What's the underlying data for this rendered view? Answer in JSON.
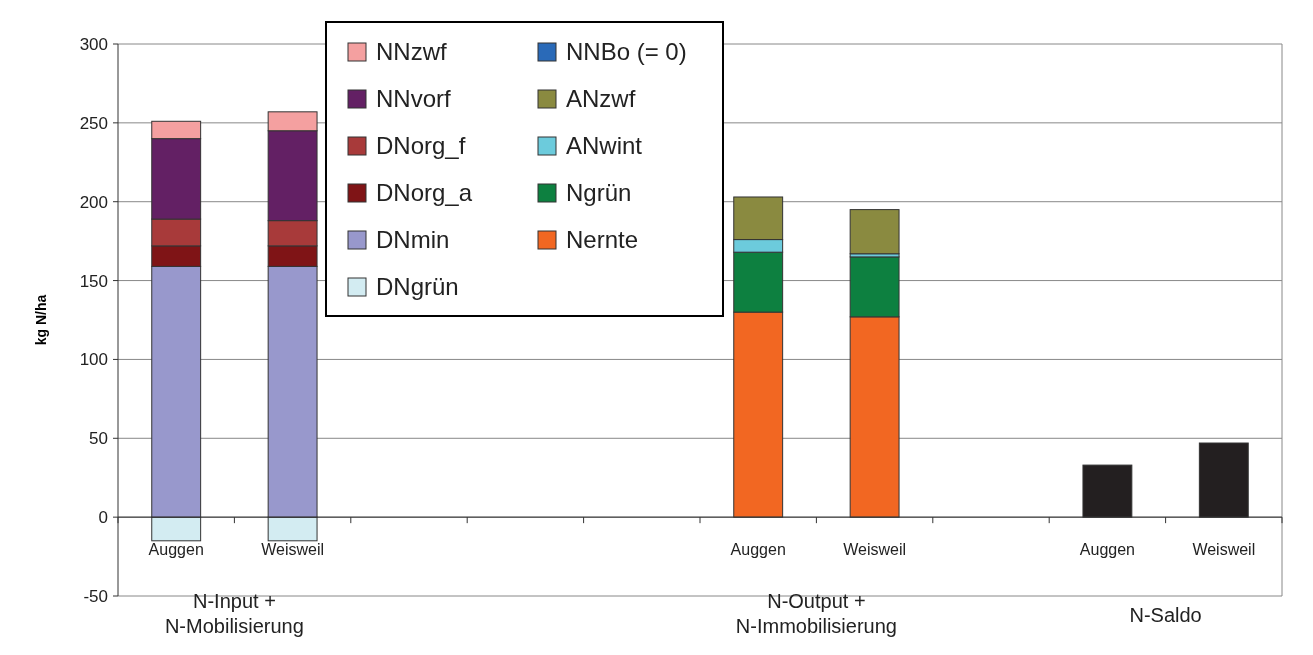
{
  "chart_data": {
    "type": "bar",
    "stacked": true,
    "ylabel": "kg N/ha",
    "categories": [
      "Auggen",
      "Weisweil",
      null,
      null,
      null,
      "Auggen",
      "Weisweil",
      null,
      "Auggen",
      "Weisweil"
    ],
    "series": [
      {
        "name": "DNgrün",
        "color": "#d3ecf2",
        "values": [
          -15,
          -15,
          null,
          null,
          null,
          null,
          null,
          null,
          null,
          null
        ]
      },
      {
        "name": "DNmin",
        "color": "#9898cc",
        "values": [
          159,
          159,
          null,
          null,
          null,
          null,
          null,
          null,
          null,
          null
        ]
      },
      {
        "name": "DNorg_a",
        "color": "#7f1416",
        "values": [
          13,
          13,
          null,
          null,
          null,
          null,
          null,
          null,
          null,
          null
        ]
      },
      {
        "name": "DNorg_f",
        "color": "#a83a3a",
        "values": [
          17,
          16,
          null,
          null,
          null,
          null,
          null,
          null,
          null,
          null
        ]
      },
      {
        "name": "NNvorf",
        "color": "#632064",
        "values": [
          51,
          57,
          null,
          null,
          null,
          null,
          null,
          null,
          null,
          null
        ]
      },
      {
        "name": "NNzwf",
        "color": "#f4a0a0",
        "values": [
          11,
          12,
          null,
          null,
          null,
          null,
          null,
          null,
          null,
          null
        ]
      },
      {
        "name": "Nernte",
        "color": "#f26722",
        "values": [
          null,
          null,
          null,
          null,
          null,
          130,
          127,
          null,
          null,
          null
        ]
      },
      {
        "name": "Ngrün",
        "color": "#0d8040",
        "values": [
          null,
          null,
          null,
          null,
          null,
          38,
          38,
          null,
          null,
          null
        ]
      },
      {
        "name": "ANwint",
        "color": "#6ccbdc",
        "values": [
          null,
          null,
          null,
          null,
          null,
          8,
          2,
          null,
          null,
          null
        ]
      },
      {
        "name": "ANzwf",
        "color": "#8a8a40",
        "values": [
          null,
          null,
          null,
          null,
          null,
          27,
          28,
          null,
          null,
          null
        ]
      },
      {
        "color": "#231f20",
        "values": [
          null,
          null,
          null,
          null,
          null,
          null,
          null,
          null,
          33,
          47
        ]
      },
      {
        "name": "NNBo (= 0)",
        "color": "#2a6ab8",
        "values": [
          0,
          0,
          null,
          null,
          null,
          null,
          null,
          null,
          null,
          null
        ]
      }
    ],
    "ylim": [
      -50,
      300
    ],
    "yticks": [
      -50,
      0,
      50,
      100,
      150,
      200,
      250,
      300
    ],
    "grid": "y",
    "legend": "top",
    "annotations": [
      "N-Input +\nN-Mobilisierung",
      "N-Output +\nN-Immobilisierung",
      "N-Saldo"
    ]
  }
}
